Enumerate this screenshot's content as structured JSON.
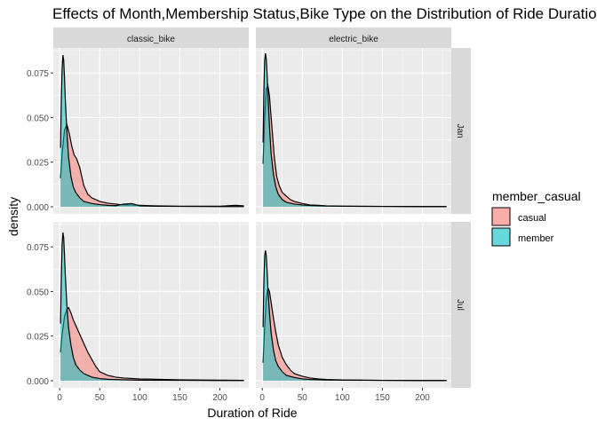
{
  "chart_data": {
    "type": "area",
    "title": "Effects of Month,Membership Status,Bike Type on the Distribution of Ride Duration",
    "xlabel": "Duration of Ride",
    "ylabel": "density",
    "xlim": [
      -8,
      236
    ],
    "ylim": [
      -0.004,
      0.089
    ],
    "x_ticks": [
      0,
      50,
      100,
      150,
      200
    ],
    "x_tick_labels": [
      "0",
      "50",
      "100",
      "150",
      "200"
    ],
    "y_ticks": [
      0.0,
      0.025,
      0.05,
      0.075
    ],
    "y_tick_labels": [
      "0.000",
      "0.025",
      "0.050",
      "0.075"
    ],
    "grid": true,
    "legend": {
      "title": "member_casual",
      "position": "right",
      "entries": [
        "casual",
        "member"
      ]
    },
    "colors": {
      "casual": "#f8766d",
      "member": "#00bfc4"
    },
    "facet_columns": [
      "classic_bike",
      "electric_bike"
    ],
    "facet_rows": [
      "Jan",
      "Jul"
    ],
    "panels": [
      {
        "column": "classic_bike",
        "row": "Jan",
        "series": [
          {
            "name": "casual",
            "x": [
              1,
              3,
              6,
              9,
              12,
              15,
              18,
              21,
              25,
              30,
              35,
              40,
              50,
              60,
              70,
              80,
              90,
              100,
              120,
              150,
              200,
              220,
              230
            ],
            "y": [
              0.016,
              0.03,
              0.043,
              0.046,
              0.041,
              0.034,
              0.029,
              0.027,
              0.022,
              0.012,
              0.007,
              0.005,
              0.003,
              0.002,
              0.0015,
              0.001,
              0.001,
              0.0008,
              0.0005,
              0.0003,
              0.0003,
              0.0008,
              0.0005
            ]
          },
          {
            "name": "member",
            "x": [
              1,
              2,
              3,
              4,
              5,
              6,
              7,
              9,
              11,
              14,
              17,
              20,
              25,
              30,
              40,
              50,
              60,
              70,
              80,
              90,
              100,
              120,
              150,
              200,
              230
            ],
            "y": [
              0.033,
              0.06,
              0.077,
              0.085,
              0.082,
              0.072,
              0.06,
              0.042,
              0.028,
              0.017,
              0.011,
              0.008,
              0.005,
              0.003,
              0.0018,
              0.0012,
              0.0008,
              0.0006,
              0.0015,
              0.0018,
              0.0005,
              0.0003,
              0.0002,
              0.0001,
              0.0001
            ]
          }
        ]
      },
      {
        "column": "electric_bike",
        "row": "Jan",
        "series": [
          {
            "name": "casual",
            "x": [
              1,
              3,
              5,
              7,
              9,
              12,
              15,
              18,
              21,
              25,
              30,
              35,
              40,
              50,
              60,
              70,
              80,
              100,
              150,
              200,
              230
            ],
            "y": [
              0.024,
              0.05,
              0.066,
              0.068,
              0.062,
              0.045,
              0.028,
              0.017,
              0.012,
              0.008,
              0.006,
              0.004,
              0.003,
              0.0018,
              0.001,
              0.0008,
              0.0005,
              0.0003,
              0.0002,
              0.0001,
              0.0001
            ]
          },
          {
            "name": "member",
            "x": [
              1,
              2,
              3,
              4,
              5,
              6,
              7,
              9,
              11,
              14,
              17,
              20,
              25,
              30,
              40,
              50,
              60,
              80,
              100,
              150,
              200,
              230
            ],
            "y": [
              0.036,
              0.065,
              0.082,
              0.086,
              0.083,
              0.075,
              0.064,
              0.045,
              0.03,
              0.018,
              0.011,
              0.007,
              0.004,
              0.0025,
              0.0015,
              0.001,
              0.0007,
              0.0004,
              0.0003,
              0.0002,
              0.0001,
              0.0001
            ]
          }
        ]
      },
      {
        "column": "classic_bike",
        "row": "Jul",
        "series": [
          {
            "name": "casual",
            "x": [
              1,
              3,
              6,
              9,
              11,
              14,
              17,
              20,
              25,
              30,
              35,
              40,
              45,
              50,
              60,
              70,
              80,
              100,
              120,
              150,
              200,
              230
            ],
            "y": [
              0.016,
              0.026,
              0.036,
              0.04,
              0.041,
              0.038,
              0.034,
              0.031,
              0.026,
              0.021,
              0.016,
              0.012,
              0.008,
              0.005,
              0.003,
              0.002,
              0.0015,
              0.001,
              0.0008,
              0.0005,
              0.0003,
              0.0002
            ]
          },
          {
            "name": "member",
            "x": [
              1,
              2,
              3,
              4,
              5,
              6,
              7,
              9,
              11,
              14,
              17,
              20,
              25,
              30,
              40,
              50,
              60,
              80,
              100,
              150,
              200,
              230
            ],
            "y": [
              0.032,
              0.058,
              0.076,
              0.083,
              0.08,
              0.07,
              0.059,
              0.042,
              0.03,
              0.02,
              0.013,
              0.009,
              0.006,
              0.004,
              0.002,
              0.0012,
              0.0008,
              0.0005,
              0.0003,
              0.0002,
              0.0001,
              0.0001
            ]
          }
        ]
      },
      {
        "column": "electric_bike",
        "row": "Jul",
        "series": [
          {
            "name": "casual",
            "x": [
              1,
              3,
              5,
              7,
              9,
              11,
              14,
              17,
              20,
              25,
              30,
              35,
              40,
              50,
              60,
              70,
              80,
              100,
              150,
              200,
              230
            ],
            "y": [
              0.01,
              0.03,
              0.046,
              0.052,
              0.05,
              0.044,
              0.035,
              0.027,
              0.02,
              0.013,
              0.009,
              0.006,
              0.004,
              0.0025,
              0.0015,
              0.001,
              0.0007,
              0.0004,
              0.0002,
              0.0001,
              0.0001
            ]
          },
          {
            "name": "member",
            "x": [
              1,
              2,
              3,
              4,
              5,
              6,
              7,
              9,
              11,
              14,
              17,
              20,
              25,
              30,
              40,
              50,
              60,
              80,
              100,
              150,
              200,
              230
            ],
            "y": [
              0.03,
              0.055,
              0.07,
              0.073,
              0.07,
              0.062,
              0.052,
              0.038,
              0.027,
              0.017,
              0.011,
              0.008,
              0.005,
              0.003,
              0.0018,
              0.001,
              0.0007,
              0.0004,
              0.0003,
              0.0002,
              0.0001,
              0.0001
            ]
          }
        ]
      }
    ]
  }
}
